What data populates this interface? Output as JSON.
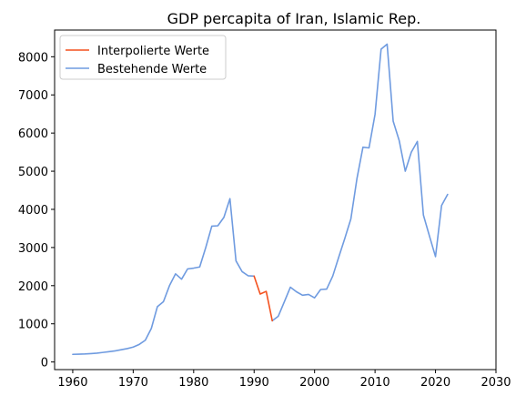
{
  "chart_data": {
    "type": "line",
    "title": "GDP percapita of Iran, Islamic Rep.",
    "xlabel": "",
    "ylabel": "",
    "xlim": [
      1957,
      2030
    ],
    "ylim": [
      -200,
      8700
    ],
    "xticks": [
      1960,
      1970,
      1980,
      1990,
      2000,
      2010,
      2020,
      2030
    ],
    "yticks": [
      0,
      1000,
      2000,
      3000,
      4000,
      5000,
      6000,
      7000,
      8000
    ],
    "grid": false,
    "legend_position": "top-left",
    "series": [
      {
        "name": "Interpolierte Werte",
        "color": "#f4511e",
        "x": [
          1990,
          1991,
          1992,
          1993
        ],
        "y": [
          2250,
          1780,
          1850,
          1080
        ]
      },
      {
        "name": "Bestehende Werte",
        "color": "#6f9be0",
        "x": [
          1960,
          1961,
          1962,
          1963,
          1964,
          1965,
          1966,
          1967,
          1968,
          1969,
          1970,
          1971,
          1972,
          1973,
          1974,
          1975,
          1976,
          1977,
          1978,
          1979,
          1980,
          1981,
          1982,
          1983,
          1984,
          1985,
          1986,
          1987,
          1988,
          1989,
          1990,
          null,
          1993,
          1994,
          1995,
          1996,
          1997,
          1998,
          1999,
          2000,
          2001,
          2002,
          2003,
          2004,
          2005,
          2006,
          2007,
          2008,
          2009,
          2010,
          2011,
          2012,
          2013,
          2014,
          2015,
          2016,
          2017,
          2018,
          2019,
          2020,
          2021,
          2022
        ],
        "y": [
          200,
          205,
          210,
          220,
          230,
          250,
          270,
          290,
          320,
          350,
          390,
          460,
          570,
          880,
          1450,
          1580,
          2000,
          2310,
          2170,
          2440,
          2460,
          2490,
          3000,
          3560,
          3570,
          3790,
          4280,
          2650,
          2370,
          2260,
          2250,
          null,
          1080,
          1200,
          1580,
          1960,
          1840,
          1750,
          1770,
          1680,
          1900,
          1910,
          2250,
          2750,
          3240,
          3750,
          4800,
          5630,
          5610,
          6490,
          8200,
          8330,
          6310,
          5800,
          5000,
          5500,
          5780,
          3850,
          3300,
          2760,
          4100,
          4390
        ]
      }
    ]
  }
}
